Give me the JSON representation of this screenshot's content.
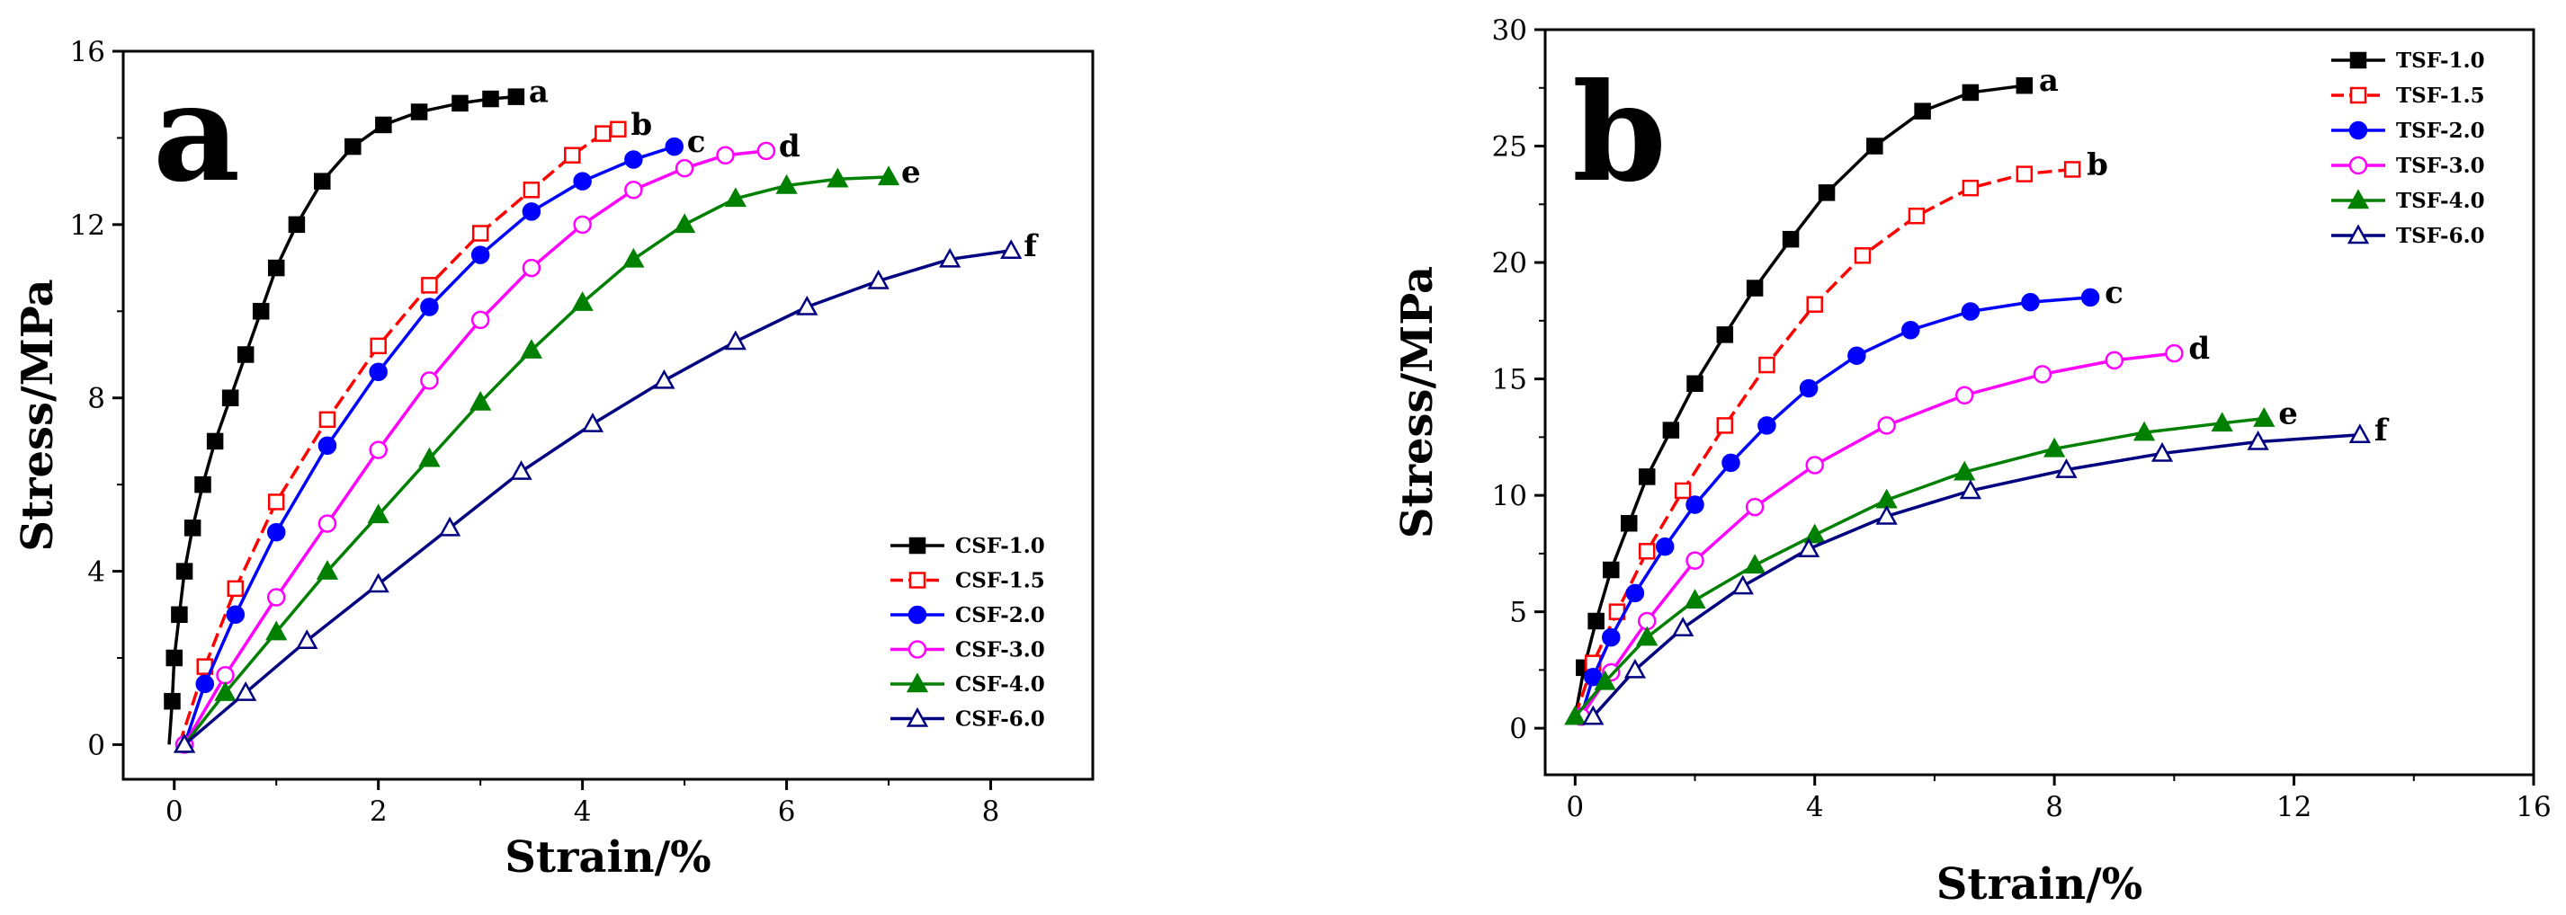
{
  "chart_data": [
    {
      "type": "line",
      "panel_label": "a",
      "xlabel": "Strain/%",
      "ylabel": "Stress/MPa",
      "xlim": [
        -0.5,
        9
      ],
      "ylim": [
        -0.8,
        16
      ],
      "xticks": [
        0,
        2,
        4,
        6,
        8
      ],
      "yticks": [
        0,
        4,
        8,
        12,
        16
      ],
      "legend_position": "bottom-right",
      "series": [
        {
          "name": "CSF-1.0",
          "end_label": "a",
          "color": "#000000",
          "marker": "square-filled",
          "x": [
            -0.05,
            -0.02,
            0.0,
            0.05,
            0.1,
            0.18,
            0.28,
            0.4,
            0.55,
            0.7,
            0.85,
            1.0,
            1.2,
            1.45,
            1.75,
            2.05,
            2.4,
            2.8,
            3.1,
            3.35
          ],
          "y": [
            0.0,
            1.0,
            2.0,
            3.0,
            4.0,
            5.0,
            6.0,
            7.0,
            8.0,
            9.0,
            10.0,
            11.0,
            12.0,
            13.0,
            13.8,
            14.3,
            14.6,
            14.8,
            14.9,
            14.95
          ]
        },
        {
          "name": "CSF-1.5",
          "end_label": "b",
          "color": "#ff0000",
          "marker": "square-open",
          "x": [
            0.05,
            0.3,
            0.6,
            1.0,
            1.5,
            2.0,
            2.5,
            3.0,
            3.5,
            3.9,
            4.2,
            4.35
          ],
          "y": [
            0.0,
            1.8,
            3.6,
            5.6,
            7.5,
            9.2,
            10.6,
            11.8,
            12.8,
            13.6,
            14.1,
            14.2
          ]
        },
        {
          "name": "CSF-2.0",
          "end_label": "c",
          "color": "#0000ff",
          "marker": "circle-filled",
          "x": [
            0.1,
            0.3,
            0.6,
            1.0,
            1.5,
            2.0,
            2.5,
            3.0,
            3.5,
            4.0,
            4.5,
            4.9
          ],
          "y": [
            0.0,
            1.4,
            3.0,
            4.9,
            6.9,
            8.6,
            10.1,
            11.3,
            12.3,
            13.0,
            13.5,
            13.8
          ]
        },
        {
          "name": "CSF-3.0",
          "end_label": "d",
          "color": "#ff00ff",
          "marker": "circle-open",
          "x": [
            0.1,
            0.5,
            1.0,
            1.5,
            2.0,
            2.5,
            3.0,
            3.5,
            4.0,
            4.5,
            5.0,
            5.4,
            5.8
          ],
          "y": [
            0.0,
            1.6,
            3.4,
            5.1,
            6.8,
            8.4,
            9.8,
            11.0,
            12.0,
            12.8,
            13.3,
            13.6,
            13.7
          ]
        },
        {
          "name": "CSF-4.0",
          "end_label": "e",
          "color": "#008000",
          "marker": "triangle-filled",
          "x": [
            0.1,
            0.5,
            1.0,
            1.5,
            2.0,
            2.5,
            3.0,
            3.5,
            4.0,
            4.5,
            5.0,
            5.5,
            6.0,
            6.5,
            7.0
          ],
          "y": [
            0.0,
            1.2,
            2.6,
            4.0,
            5.3,
            6.6,
            7.9,
            9.1,
            10.2,
            11.2,
            12.0,
            12.6,
            12.9,
            13.05,
            13.1
          ]
        },
        {
          "name": "CSF-6.0",
          "end_label": "f",
          "color": "#000080",
          "marker": "triangle-open",
          "x": [
            0.1,
            0.7,
            1.3,
            2.0,
            2.7,
            3.4,
            4.1,
            4.8,
            5.5,
            6.2,
            6.9,
            7.6,
            8.2
          ],
          "y": [
            0.0,
            1.2,
            2.4,
            3.7,
            5.0,
            6.3,
            7.4,
            8.4,
            9.3,
            10.1,
            10.7,
            11.2,
            11.4
          ]
        }
      ]
    },
    {
      "type": "line",
      "panel_label": "b",
      "xlabel": "Strain/%",
      "ylabel": "Stress/MPa",
      "xlim": [
        -0.5,
        16
      ],
      "ylim": [
        -2,
        30
      ],
      "xticks": [
        0,
        4,
        8,
        12,
        16
      ],
      "yticks": [
        0,
        5,
        10,
        15,
        20,
        25,
        30
      ],
      "legend_position": "top-right",
      "series": [
        {
          "name": "TSF-1.0",
          "end_label": "a",
          "color": "#000000",
          "marker": "square-filled",
          "x": [
            0.0,
            0.15,
            0.35,
            0.6,
            0.9,
            1.2,
            1.6,
            2.0,
            2.5,
            3.0,
            3.6,
            4.2,
            5.0,
            5.8,
            6.6,
            7.5
          ],
          "y": [
            0.5,
            2.6,
            4.6,
            6.8,
            8.8,
            10.8,
            12.8,
            14.8,
            16.9,
            18.9,
            21.0,
            23.0,
            25.0,
            26.5,
            27.3,
            27.6
          ]
        },
        {
          "name": "TSF-1.5",
          "end_label": "b",
          "color": "#ff0000",
          "marker": "square-open",
          "x": [
            0.0,
            0.3,
            0.7,
            1.2,
            1.8,
            2.5,
            3.2,
            4.0,
            4.8,
            5.7,
            6.6,
            7.5,
            8.3
          ],
          "y": [
            0.5,
            2.8,
            5.0,
            7.6,
            10.2,
            13.0,
            15.6,
            18.2,
            20.3,
            22.0,
            23.2,
            23.8,
            24.0
          ]
        },
        {
          "name": "TSF-2.0",
          "end_label": "c",
          "color": "#0000ff",
          "marker": "circle-filled",
          "x": [
            0.1,
            0.3,
            0.6,
            1.0,
            1.5,
            2.0,
            2.6,
            3.2,
            3.9,
            4.7,
            5.6,
            6.6,
            7.6,
            8.6
          ],
          "y": [
            0.5,
            2.2,
            3.9,
            5.8,
            7.8,
            9.6,
            11.4,
            13.0,
            14.6,
            16.0,
            17.1,
            17.9,
            18.3,
            18.5
          ]
        },
        {
          "name": "TSF-3.0",
          "end_label": "d",
          "color": "#ff00ff",
          "marker": "circle-open",
          "x": [
            0.1,
            0.6,
            1.2,
            2.0,
            3.0,
            4.0,
            5.2,
            6.5,
            7.8,
            9.0,
            10.0
          ],
          "y": [
            0.5,
            2.4,
            4.6,
            7.2,
            9.5,
            11.3,
            13.0,
            14.3,
            15.2,
            15.8,
            16.1
          ]
        },
        {
          "name": "TSF-4.0",
          "end_label": "e",
          "color": "#008000",
          "marker": "triangle-filled",
          "x": [
            0.0,
            0.5,
            1.2,
            2.0,
            3.0,
            4.0,
            5.2,
            6.5,
            8.0,
            9.5,
            10.8,
            11.5
          ],
          "y": [
            0.5,
            2.0,
            3.9,
            5.5,
            7.0,
            8.3,
            9.8,
            11.0,
            12.0,
            12.7,
            13.1,
            13.3
          ]
        },
        {
          "name": "TSF-6.0",
          "end_label": "f",
          "color": "#000080",
          "marker": "triangle-open",
          "x": [
            0.3,
            1.0,
            1.8,
            2.8,
            3.9,
            5.2,
            6.6,
            8.2,
            9.8,
            11.4,
            13.1
          ],
          "y": [
            0.5,
            2.5,
            4.3,
            6.1,
            7.7,
            9.1,
            10.2,
            11.1,
            11.8,
            12.3,
            12.6
          ]
        }
      ]
    }
  ]
}
